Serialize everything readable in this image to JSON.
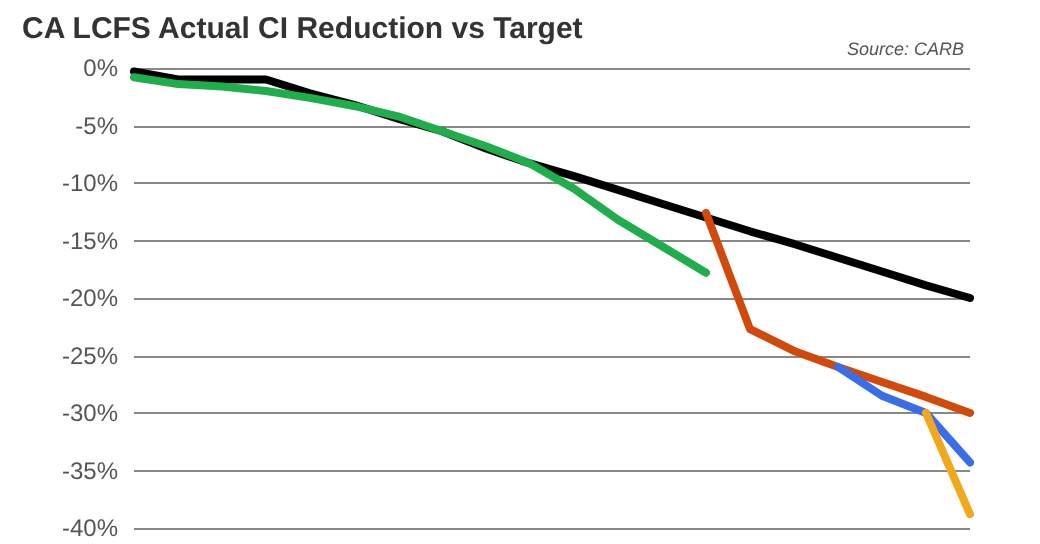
{
  "chart_data": {
    "type": "line",
    "title": "CA LCFS Actual CI Reduction vs Target",
    "annotations": [
      "Source: CARB"
    ],
    "categories": [
      null,
      null,
      null,
      null,
      null,
      null,
      null,
      null,
      null,
      null,
      null,
      null,
      null,
      null,
      null,
      null,
      null,
      null,
      null,
      null
    ],
    "series": [
      {
        "color": "#000000",
        "values": [
          -0.3,
          -1,
          -1,
          -1,
          -2.2,
          -3.2,
          -4.4,
          -5.5,
          -7,
          -8.3,
          -9.4,
          -10.6,
          -11.8,
          -13,
          -14.2,
          -15.3,
          -16.5,
          -17.7,
          -18.9,
          -20
        ]
      },
      {
        "color": "#1fae4b",
        "values": [
          -0.8,
          -1.4,
          -1.6,
          -2,
          -2.6,
          -3.3,
          -4.2,
          -5.5,
          -6.8,
          -8.3,
          -10.5,
          -13.2,
          -15.5,
          -17.8,
          null,
          null,
          null,
          null,
          null,
          null
        ]
      },
      {
        "color": "#d24a0b",
        "values": [
          null,
          null,
          null,
          null,
          null,
          null,
          null,
          null,
          null,
          null,
          null,
          null,
          null,
          -12.6,
          -22.7,
          -24.6,
          -26,
          -27.3,
          -28.6,
          -30
        ]
      },
      {
        "color": "#3a6ee8",
        "values": [
          null,
          null,
          null,
          null,
          null,
          null,
          null,
          null,
          null,
          null,
          null,
          null,
          null,
          null,
          null,
          null,
          -26,
          -28.5,
          -30,
          -34.3
        ]
      },
      {
        "color": "#f2a81d",
        "values": [
          null,
          null,
          null,
          null,
          null,
          null,
          null,
          null,
          null,
          null,
          null,
          null,
          null,
          null,
          null,
          null,
          null,
          null,
          -30,
          -38.8
        ]
      }
    ],
    "ylim": [
      -40,
      0
    ],
    "yticks": [
      {
        "value": -40,
        "label": "-40%"
      },
      {
        "value": -35,
        "label": "-35%"
      },
      {
        "value": -30,
        "label": "-30%"
      },
      {
        "value": -25,
        "label": "-25%"
      },
      {
        "value": -20,
        "label": "-20%"
      },
      {
        "value": -15,
        "label": "-15%"
      },
      {
        "value": -10,
        "label": "-10%"
      },
      {
        "value": -5,
        "label": "-5%"
      },
      {
        "value": 0,
        "label": "0%"
      }
    ],
    "grid": "y",
    "marker": "none",
    "line_style": "solid"
  }
}
